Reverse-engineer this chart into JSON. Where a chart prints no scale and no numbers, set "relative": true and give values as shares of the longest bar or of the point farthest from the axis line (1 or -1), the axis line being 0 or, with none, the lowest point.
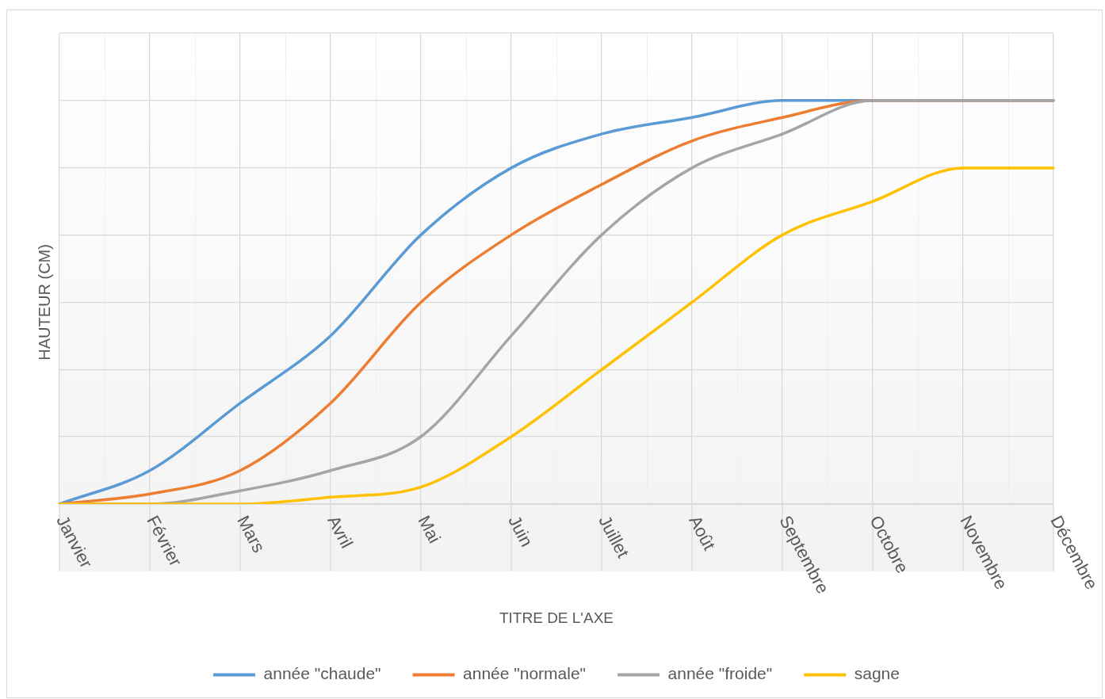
{
  "chart_data": {
    "type": "line",
    "xlabel": "TITRE DE L'AXE",
    "ylabel": "HAUTEUR (CM)",
    "categories": [
      "Janvier",
      "Février",
      "Mars",
      "Avril",
      "Mai",
      "Juin",
      "Juillet",
      "Août",
      "Septembre",
      "Octobre",
      "Novembre",
      "Décembre"
    ],
    "series": [
      {
        "name": "année \"chaude\"",
        "color": "#5b9bd5",
        "values": [
          0,
          0.083,
          0.25,
          0.417,
          0.667,
          0.833,
          0.917,
          0.958,
          1,
          1,
          1,
          1
        ]
      },
      {
        "name": "année \"normale\"",
        "color": "#ed7d31",
        "values": [
          0,
          0.025,
          0.083,
          0.25,
          0.5,
          0.667,
          0.792,
          0.9,
          0.958,
          1,
          1,
          1
        ]
      },
      {
        "name": "année \"froide\"",
        "color": "#a5a5a5",
        "values": [
          0,
          0,
          0.033,
          0.083,
          0.167,
          0.417,
          0.667,
          0.833,
          0.917,
          1,
          1,
          1
        ]
      },
      {
        "name": "sagne",
        "color": "#ffc000",
        "values": [
          0,
          0,
          0,
          0.017,
          0.042,
          0.167,
          0.333,
          0.5,
          0.667,
          0.75,
          0.833,
          0.833
        ]
      }
    ],
    "relative": true,
    "grid": true,
    "legend": "bottom",
    "marker": "none",
    "line_style": "solid"
  }
}
